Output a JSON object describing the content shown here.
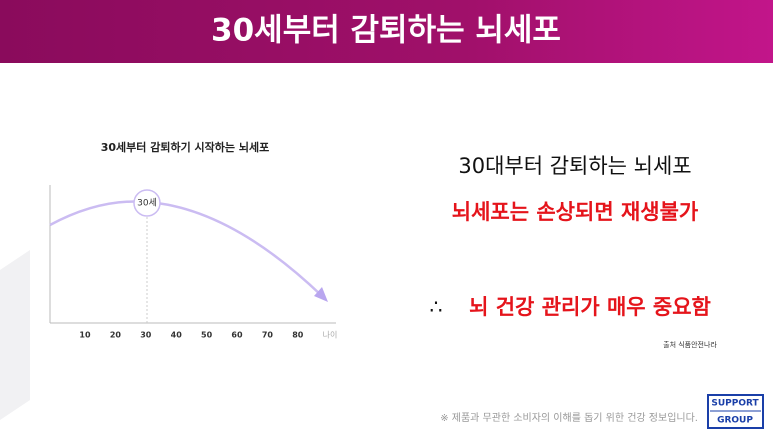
{
  "header": {
    "title": "30세부터 감퇴하는 뇌세포"
  },
  "chart": {
    "title": "30세부터 감퇴하기 시작하는 뇌세포",
    "annotation": "30세",
    "x_ticks": [
      "10",
      "20",
      "30",
      "40",
      "50",
      "60",
      "70",
      "80"
    ],
    "x_label": "나이"
  },
  "points": {
    "line1": "30대부터 감퇴하는 뇌세포",
    "line2": "뇌세포는 손상되면 재생불가",
    "symbol": "∴",
    "conclusion": "뇌 건강 관리가 매우 중요함"
  },
  "source": "출처 식품안전나라",
  "disclaimer": "※ 제품과 무관한 소비자의 이해를 돕기 위한 건강 정보입니다.",
  "logo": {
    "line1": "SUPPORT",
    "line2": "GROUP"
  }
}
